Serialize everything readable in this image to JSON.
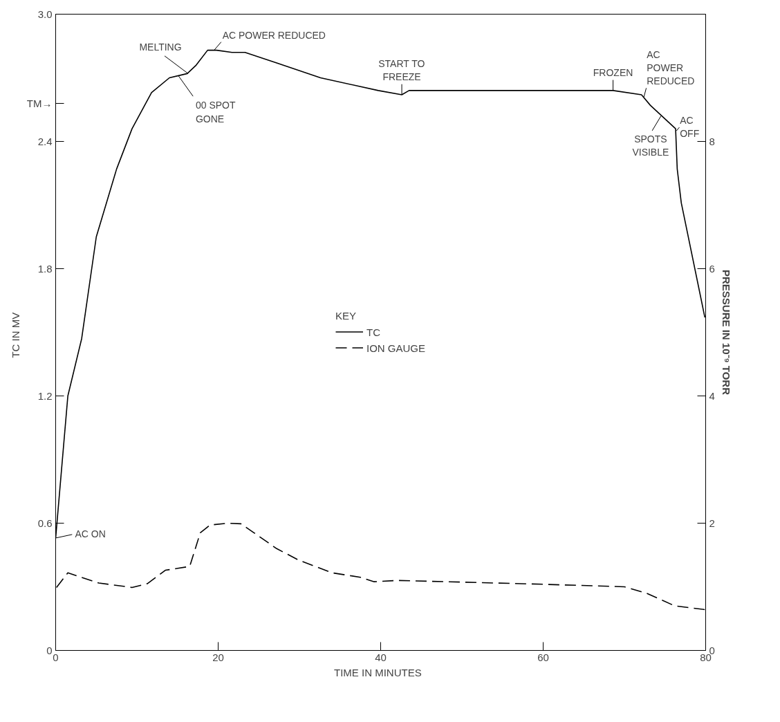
{
  "chart_data": {
    "type": "line",
    "xlabel": "TIME   IN MINUTES",
    "ylabel": "TC  IN  MV",
    "y2label": "PRESSURE IN 10⁻⁹ TORR",
    "legend_title": "KEY",
    "xlim": [
      0,
      80
    ],
    "xticks": [
      0,
      20,
      40,
      60,
      80
    ],
    "ylim": [
      0,
      3.0
    ],
    "yticks": [
      0,
      0.6,
      1.2,
      1.8,
      2.4,
      {
        "value": 2.58,
        "label": "TM→"
      },
      {
        "value": 3.0,
        "label": "3.0"
      }
    ],
    "y2lim": [
      0,
      10
    ],
    "y2ticks": [
      0,
      2,
      4,
      6,
      8
    ],
    "grid": false,
    "legend": "center",
    "series": [
      {
        "name": "TC",
        "color": "#000000",
        "line_style": "solid",
        "x": [
          0,
          1.5,
          3.2,
          5.0,
          7.5,
          9.4,
          11.8,
          14.0,
          16.2,
          17.3,
          18.7,
          19.8,
          21.7,
          23.3,
          27.2,
          32.6,
          39.7,
          42.6,
          43.5,
          68.6,
          72.1,
          73.2,
          76.3,
          76.5,
          77.0,
          79.9
        ],
        "values": [
          0.53,
          1.2,
          1.47,
          1.95,
          2.27,
          2.46,
          2.63,
          2.7,
          2.72,
          2.76,
          2.83,
          2.83,
          2.82,
          2.82,
          2.77,
          2.7,
          2.64,
          2.62,
          2.64,
          2.64,
          2.62,
          2.57,
          2.46,
          2.27,
          2.11,
          1.57
        ]
      },
      {
        "name": "ION GAUGE",
        "color": "#000000",
        "line_style": "dashed",
        "axis": "y2",
        "x": [
          0.1,
          1.5,
          5.3,
          9.4,
          11.3,
          13.5,
          16.5,
          17.8,
          19.0,
          21.2,
          22.8,
          24.4,
          27.2,
          29.9,
          34.0,
          37.5,
          39.2,
          42.1,
          59.9,
          70.0,
          72.7,
          76.2,
          80.0
        ],
        "values": [
          0.99,
          1.22,
          1.06,
          0.99,
          1.05,
          1.26,
          1.32,
          1.85,
          1.97,
          2.0,
          1.99,
          1.85,
          1.6,
          1.42,
          1.22,
          1.15,
          1.08,
          1.1,
          1.04,
          1.0,
          0.9,
          0.7,
          0.64
        ]
      }
    ],
    "annotations": [
      {
        "text": "AC ON",
        "x": 0,
        "y": 0.53
      },
      {
        "text": "MELTING",
        "x": 16.3,
        "y": 2.72
      },
      {
        "text": "00 SPOT\nGONE",
        "x": 15.1,
        "y": 2.71
      },
      {
        "text": "AC POWER REDUCED",
        "x": 19.5,
        "y": 2.83
      },
      {
        "text": "START TO\nFREEZE",
        "x": 42.6,
        "y": 2.62
      },
      {
        "text": "FROZEN",
        "x": 68.6,
        "y": 2.64
      },
      {
        "text": "AC\nPOWER\nREDUCED",
        "x": 72.4,
        "y": 2.61
      },
      {
        "text": "SPOTS\nVISIBLE",
        "x": 74.5,
        "y": 2.52
      },
      {
        "text": "AC\nOFF",
        "x": 76.4,
        "y": 2.45
      }
    ]
  }
}
